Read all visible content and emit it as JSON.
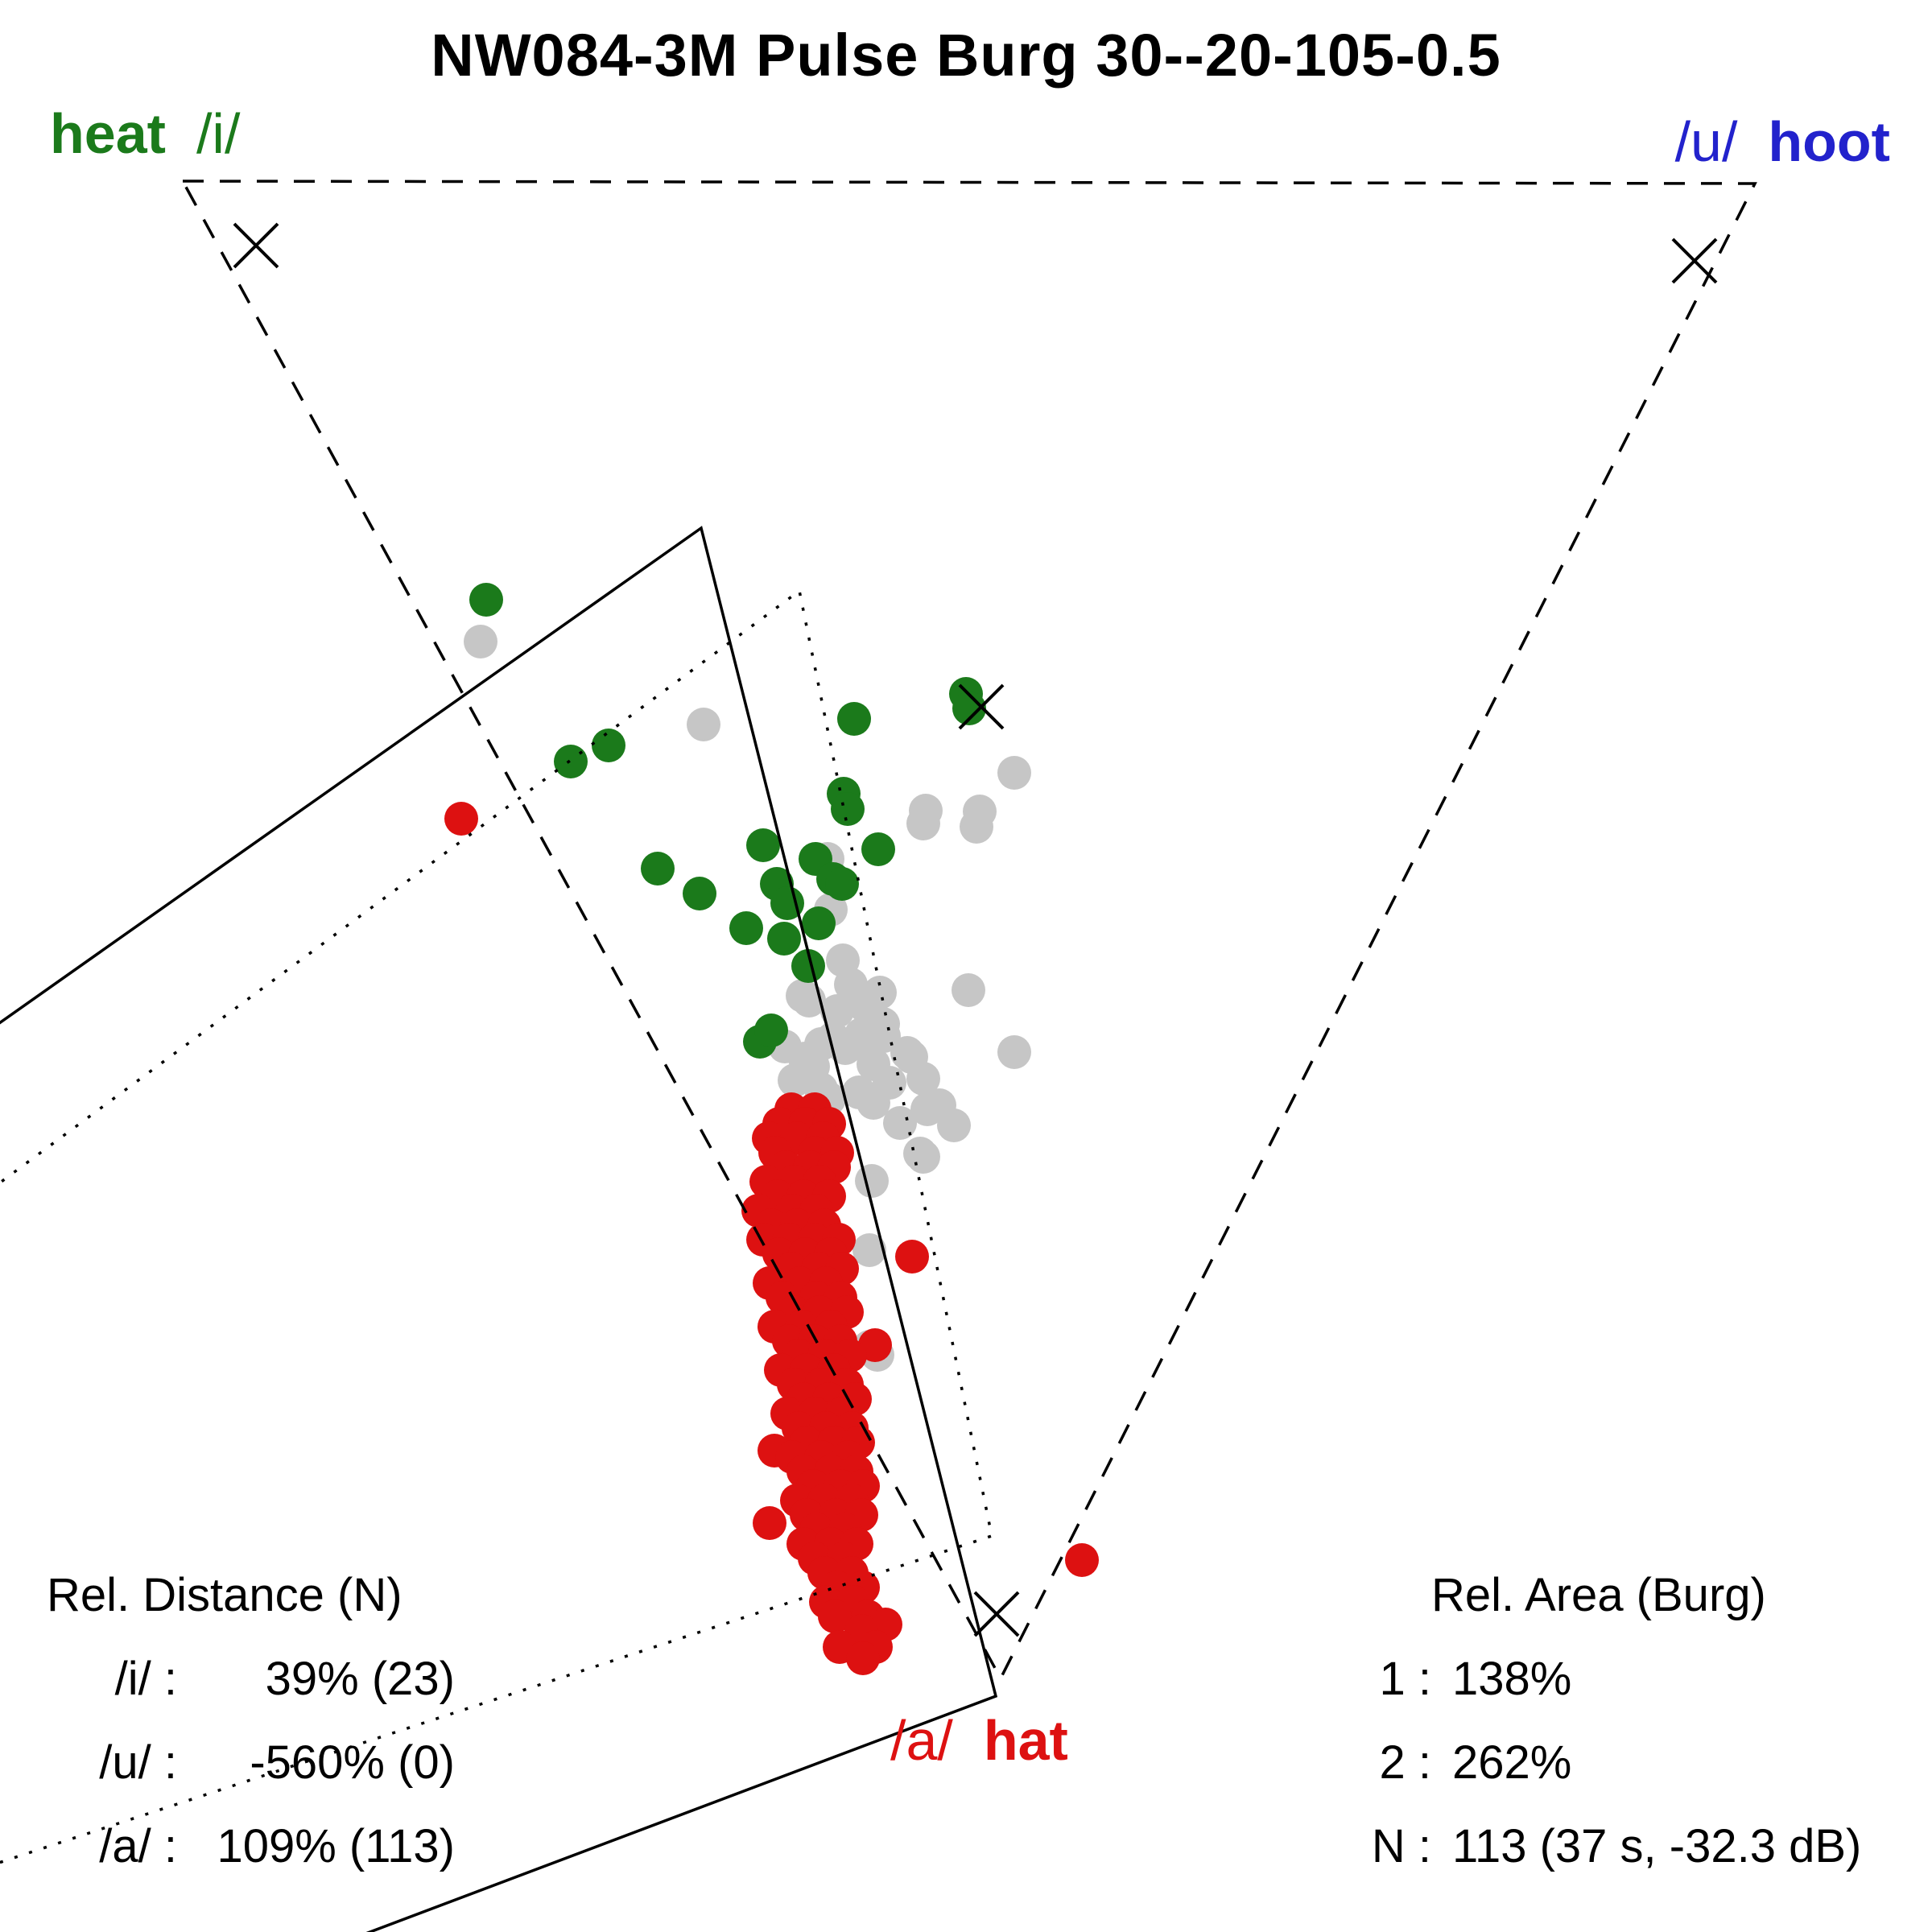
{
  "title": "NW084-3M Pulse Burg 30--20-105-0.5",
  "vowel_labels": {
    "i": {
      "word": "heat",
      "ipa": "/i/",
      "color": "#1b7a1b"
    },
    "u": {
      "ipa": "/u/",
      "word": "hoot",
      "color": "#2222cc"
    },
    "a": {
      "ipa": "/a/",
      "word": "hat",
      "color": "#dd1111"
    }
  },
  "stats_left": {
    "title": "Rel. Distance (N)",
    "rows": [
      {
        "label": "/i/ :",
        "value": "39% (23)"
      },
      {
        "label": "/u/ :",
        "value": "-560% (0)"
      },
      {
        "label": "/a/ :",
        "value": "109% (113)"
      }
    ]
  },
  "stats_right": {
    "title": "Rel. Area (Burg)",
    "rows": [
      {
        "label": "1 :",
        "value": "138%"
      },
      {
        "label": "2 :",
        "value": "262%"
      },
      {
        "label": "N :",
        "value": "113 (37 s, -32.3 dB)"
      }
    ]
  },
  "chart_data": {
    "type": "scatter",
    "title": "NW084-3M Pulse Burg 30--20-105-0.5",
    "xlabel": "",
    "ylabel": "",
    "grid": false,
    "coordinate_space": [
      2400,
      2400
    ],
    "point_radius": 21,
    "line_color": "#000000",
    "x_mark_size": 27,
    "x_marks": [
      [
        318,
        305
      ],
      [
        2105,
        324
      ],
      [
        1219,
        878
      ],
      [
        1238,
        2005
      ]
    ],
    "polygons": [
      {
        "name": "reference-vowel-triangle",
        "style": "dashed",
        "dash": "26,20",
        "closed": true,
        "points": [
          [
            227,
            225
          ],
          [
            2180,
            228
          ],
          [
            1243,
            2085
          ]
        ]
      },
      {
        "name": "measured-area-1-solid",
        "style": "solid",
        "dash": "",
        "closed": false,
        "points": [
          [
            -120,
            1355
          ],
          [
            871,
            656
          ],
          [
            1237,
            2107
          ],
          [
            380,
            2430
          ]
        ]
      },
      {
        "name": "measured-area-2-dotted",
        "style": "dotted",
        "dash": "4,15",
        "closed": false,
        "points": [
          [
            -120,
            1558
          ],
          [
            993,
            734
          ],
          [
            1232,
            1908
          ],
          [
            -120,
            2353
          ]
        ]
      }
    ],
    "series": [
      {
        "name": "unlabeled-tokens",
        "color": "#c6c6c6",
        "points": [
          [
            597,
            797
          ],
          [
            874,
            900
          ],
          [
            1260,
            960
          ],
          [
            1150,
            1007
          ],
          [
            1217,
            1008
          ],
          [
            1147,
            1023
          ],
          [
            1213,
            1027
          ],
          [
            1028,
            1067
          ],
          [
            1032,
            1130
          ],
          [
            1047,
            1193
          ],
          [
            1057,
            1223
          ],
          [
            997,
            1237
          ],
          [
            1093,
            1233
          ],
          [
            1203,
            1230
          ],
          [
            1005,
            1243
          ],
          [
            1040,
            1256
          ],
          [
            1075,
            1250
          ],
          [
            1097,
            1272
          ],
          [
            1067,
            1293
          ],
          [
            1020,
            1297
          ],
          [
            1035,
            1290
          ],
          [
            1070,
            1285
          ],
          [
            1098,
            1287
          ],
          [
            975,
            1300
          ],
          [
            1000,
            1315
          ],
          [
            1050,
            1302
          ],
          [
            1085,
            1322
          ],
          [
            1127,
            1308
          ],
          [
            1132,
            1313
          ],
          [
            1260,
            1307
          ],
          [
            987,
            1342
          ],
          [
            1020,
            1353
          ],
          [
            1067,
            1357
          ],
          [
            1105,
            1345
          ],
          [
            1147,
            1340
          ],
          [
            1030,
            1365
          ],
          [
            1085,
            1370
          ],
          [
            1152,
            1378
          ],
          [
            1167,
            1373
          ],
          [
            1118,
            1395
          ],
          [
            1185,
            1398
          ],
          [
            1143,
            1433
          ],
          [
            1147,
            1437
          ],
          [
            1083,
            1467
          ],
          [
            1080,
            1553
          ],
          [
            1080,
            1673
          ],
          [
            1090,
            1683
          ],
          [
            1010,
            1325
          ]
        ]
      },
      {
        "name": "heat-i-tokens",
        "color": "#1b7a1b",
        "points": [
          [
            604,
            745
          ],
          [
            709,
            946
          ],
          [
            756,
            926
          ],
          [
            817,
            1079
          ],
          [
            869,
            1110
          ],
          [
            927,
            1153
          ],
          [
            944,
            1294
          ],
          [
            948,
            1050
          ],
          [
            958,
            1280
          ],
          [
            965,
            1098
          ],
          [
            974,
            1166
          ],
          [
            978,
            1122
          ],
          [
            1004,
            1200
          ],
          [
            1013,
            1067
          ],
          [
            1017,
            1147
          ],
          [
            1035,
            1092
          ],
          [
            1046,
            1098
          ],
          [
            1048,
            986
          ],
          [
            1053,
            1005
          ],
          [
            1061,
            893
          ],
          [
            1091,
            1055
          ],
          [
            1200,
            862
          ],
          [
            1204,
            880
          ]
        ]
      },
      {
        "name": "hoot-u-tokens",
        "color": "#2222cc",
        "points": []
      },
      {
        "name": "hat-a-tokens",
        "color": "#dd1111",
        "points": [
          [
            573,
            1017
          ],
          [
            1133,
            1561
          ],
          [
            1087,
            1671
          ],
          [
            962,
            1802
          ],
          [
            956,
            1892
          ],
          [
            1344,
            1938
          ],
          [
            983,
            1378
          ],
          [
            1012,
            1378
          ],
          [
            968,
            1396
          ],
          [
            1000,
            1396
          ],
          [
            1030,
            1396
          ],
          [
            955,
            1414
          ],
          [
            990,
            1414
          ],
          [
            1022,
            1414
          ],
          [
            963,
            1432
          ],
          [
            1012,
            1432
          ],
          [
            1040,
            1432
          ],
          [
            976,
            1450
          ],
          [
            1006,
            1450
          ],
          [
            1036,
            1450
          ],
          [
            952,
            1468
          ],
          [
            986,
            1468
          ],
          [
            1018,
            1468
          ],
          [
            966,
            1486
          ],
          [
            998,
            1486
          ],
          [
            1030,
            1486
          ],
          [
            942,
            1504
          ],
          [
            984,
            1504
          ],
          [
            1014,
            1504
          ],
          [
            958,
            1522
          ],
          [
            990,
            1522
          ],
          [
            1024,
            1522
          ],
          [
            948,
            1540
          ],
          [
            980,
            1540
          ],
          [
            1012,
            1540
          ],
          [
            1042,
            1540
          ],
          [
            968,
            1558
          ],
          [
            1000,
            1558
          ],
          [
            1032,
            1558
          ],
          [
            983,
            1576
          ],
          [
            1016,
            1576
          ],
          [
            1046,
            1576
          ],
          [
            956,
            1594
          ],
          [
            994,
            1594
          ],
          [
            1026,
            1594
          ],
          [
            972,
            1612
          ],
          [
            1014,
            1612
          ],
          [
            1044,
            1612
          ],
          [
            986,
            1630
          ],
          [
            1018,
            1630
          ],
          [
            1052,
            1630
          ],
          [
            962,
            1648
          ],
          [
            996,
            1648
          ],
          [
            1032,
            1648
          ],
          [
            980,
            1666
          ],
          [
            1012,
            1666
          ],
          [
            1044,
            1666
          ],
          [
            992,
            1684
          ],
          [
            1024,
            1684
          ],
          [
            1056,
            1684
          ],
          [
            970,
            1702
          ],
          [
            1002,
            1702
          ],
          [
            1036,
            1702
          ],
          [
            986,
            1720
          ],
          [
            1020,
            1720
          ],
          [
            1052,
            1720
          ],
          [
            998,
            1738
          ],
          [
            1030,
            1738
          ],
          [
            1062,
            1738
          ],
          [
            978,
            1756
          ],
          [
            1012,
            1756
          ],
          [
            1046,
            1756
          ],
          [
            992,
            1774
          ],
          [
            1026,
            1774
          ],
          [
            1058,
            1774
          ],
          [
            1002,
            1792
          ],
          [
            1036,
            1792
          ],
          [
            1066,
            1792
          ],
          [
            984,
            1810
          ],
          [
            1020,
            1810
          ],
          [
            1054,
            1810
          ],
          [
            998,
            1828
          ],
          [
            1032,
            1828
          ],
          [
            1064,
            1828
          ],
          [
            1010,
            1846
          ],
          [
            1044,
            1846
          ],
          [
            1072,
            1846
          ],
          [
            990,
            1864
          ],
          [
            1024,
            1864
          ],
          [
            1058,
            1864
          ],
          [
            1002,
            1882
          ],
          [
            1038,
            1882
          ],
          [
            1070,
            1882
          ],
          [
            1014,
            1900
          ],
          [
            1050,
            1900
          ],
          [
            998,
            1918
          ],
          [
            1032,
            1918
          ],
          [
            1064,
            1918
          ],
          [
            1012,
            1936
          ],
          [
            1048,
            1936
          ],
          [
            1024,
            1954
          ],
          [
            1058,
            1954
          ],
          [
            1040,
            1972
          ],
          [
            1072,
            1972
          ],
          [
            1026,
            1990
          ],
          [
            1060,
            1990
          ],
          [
            1037,
            2008
          ],
          [
            1078,
            2008
          ],
          [
            1100,
            2018
          ],
          [
            1070,
            2026
          ],
          [
            1043,
            2046
          ],
          [
            1088,
            2046
          ],
          [
            1072,
            2060
          ]
        ]
      }
    ]
  }
}
